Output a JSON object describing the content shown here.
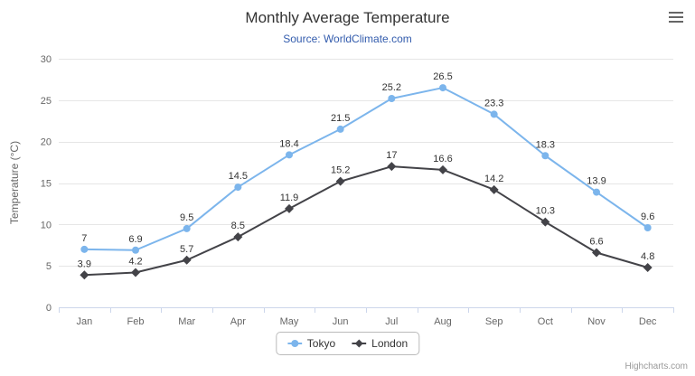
{
  "header": {
    "title": "Monthly Average Temperature",
    "subtitle": "Source: WorldClimate.com"
  },
  "icons": {
    "menu": "hamburger-icon"
  },
  "credits": "Highcharts.com",
  "chart_data": {
    "type": "line",
    "title": "Monthly Average Temperature",
    "subtitle": "Source: WorldClimate.com",
    "categories": [
      "Jan",
      "Feb",
      "Mar",
      "Apr",
      "May",
      "Jun",
      "Jul",
      "Aug",
      "Sep",
      "Oct",
      "Nov",
      "Dec"
    ],
    "series": [
      {
        "name": "Tokyo",
        "color": "#7cb5ec",
        "marker": "circle",
        "values": [
          7,
          6.9,
          9.5,
          14.5,
          18.4,
          21.5,
          25.2,
          26.5,
          23.3,
          18.3,
          13.9,
          9.6
        ]
      },
      {
        "name": "London",
        "color": "#434348",
        "marker": "diamond",
        "values": [
          3.9,
          4.2,
          5.7,
          8.5,
          11.9,
          15.2,
          17,
          16.6,
          14.2,
          10.3,
          6.6,
          4.8
        ]
      }
    ],
    "xlabel": "",
    "ylabel": "Temperature (°C)",
    "ylim": [
      0,
      30
    ],
    "yticks": [
      0,
      5,
      10,
      15,
      20,
      25,
      30
    ],
    "grid": true,
    "grid_color": "#e6e6e6",
    "axis_line_color": "#ccd6eb",
    "legend_position": "bottom"
  }
}
